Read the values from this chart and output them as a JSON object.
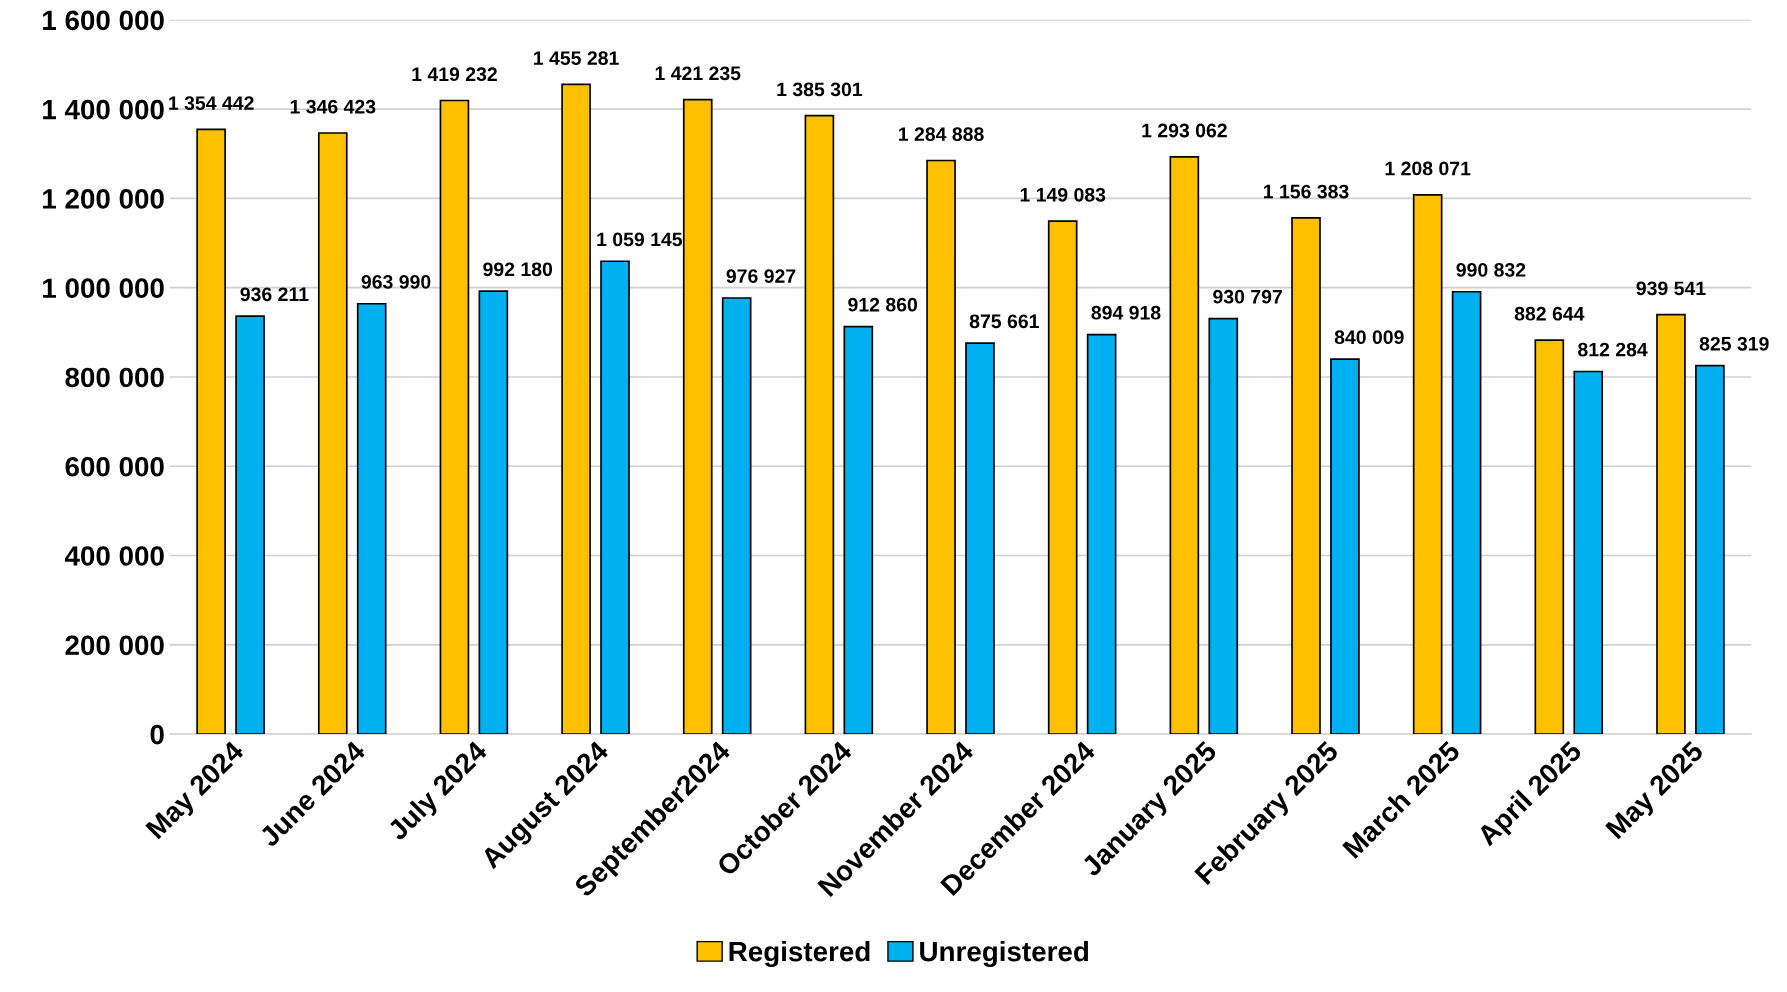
{
  "chart_data": {
    "type": "bar",
    "categories": [
      "May 2024",
      "June 2024",
      "July 2024",
      "August 2024",
      "September2024",
      "October 2024",
      "November 2024",
      "December 2024",
      "January 2025",
      "February 2025",
      "March 2025",
      "April 2025",
      "May 2025"
    ],
    "series": [
      {
        "name": "Registered",
        "color": "#ffc000",
        "values": [
          1354442,
          1346423,
          1419232,
          1455281,
          1421235,
          1385301,
          1284888,
          1149083,
          1293062,
          1156383,
          1208071,
          882644,
          939541
        ],
        "value_labels": [
          "1 354 442",
          "1 346 423",
          "1 419 232",
          "1 455 281",
          "1 421 235",
          "1 385 301",
          "1 284 888",
          "1 149 083",
          "1 293 062",
          "1 156 383",
          "1 208 071",
          "882 644",
          "939 541"
        ]
      },
      {
        "name": "Unregistered",
        "color": "#00b0f0",
        "values": [
          936211,
          963990,
          992180,
          1059145,
          976927,
          912860,
          875661,
          894918,
          930797,
          840009,
          990832,
          812284,
          825319
        ],
        "value_labels": [
          "936 211",
          "963 990",
          "992 180",
          "1 059 145",
          "976 927",
          "912 860",
          "875 661",
          "894 918",
          "930 797",
          "840 009",
          "990 832",
          "812 284",
          "825 319"
        ]
      }
    ],
    "ylim": [
      0,
      1600000
    ],
    "yticks": [
      {
        "value": 0,
        "label": "0"
      },
      {
        "value": 200000,
        "label": "200 000"
      },
      {
        "value": 400000,
        "label": "400 000"
      },
      {
        "value": 600000,
        "label": "600 000"
      },
      {
        "value": 800000,
        "label": "800 000"
      },
      {
        "value": 1000000,
        "label": "1 000 000"
      },
      {
        "value": 1200000,
        "label": "1 200 000"
      },
      {
        "value": 1400000,
        "label": "1 400 000"
      },
      {
        "value": 1600000,
        "label": "1 600 000"
      }
    ],
    "grid": "y",
    "legend": "bottom"
  }
}
